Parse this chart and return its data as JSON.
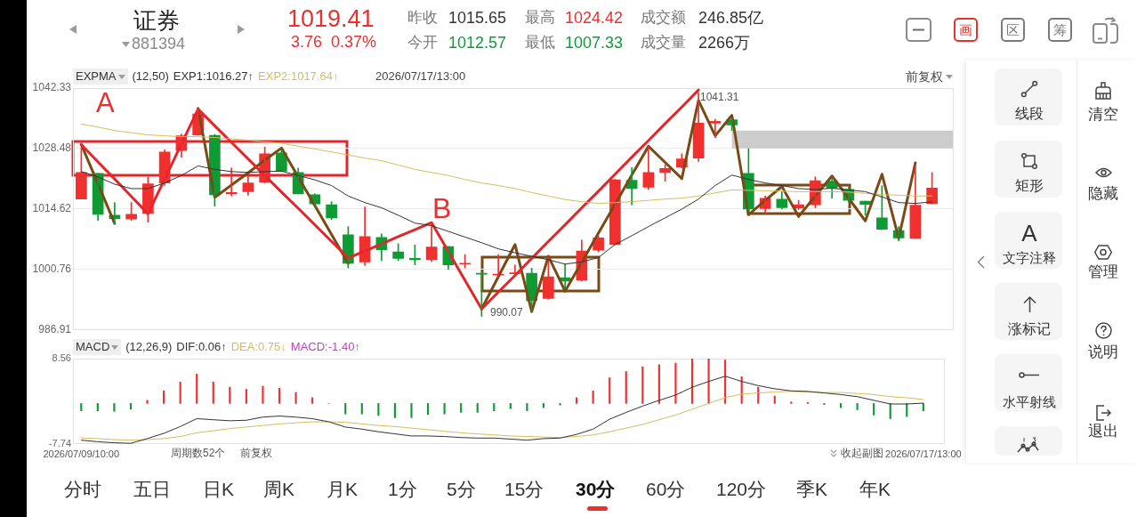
{
  "chart_data": [
    {
      "type": "other",
      "title": "证券",
      "subtitle": "881394",
      "annotations": [
        "1019.41",
        "3.76",
        "0.37%",
        "昨收",
        "1015.65",
        "今开",
        "1012.57",
        "最高",
        "1024.42",
        "最低",
        "1007.33",
        "成交额",
        "246.85亿",
        "成交量",
        "2266万",
        "画",
        "区",
        "筹"
      ]
    },
    {
      "type": "candlestick",
      "legend_title": "EXPMA",
      "legend": "top left",
      "grid": "y",
      "tick_labels": "y",
      "categories": [
        null,
        null,
        null,
        null,
        null,
        null,
        null,
        null,
        null,
        null,
        null,
        null,
        null,
        null,
        null,
        null,
        null,
        null,
        null,
        null,
        null,
        null,
        null,
        null,
        null,
        null,
        null,
        null,
        null,
        null,
        null,
        null,
        null,
        null,
        null,
        null,
        null,
        null,
        null,
        null,
        null,
        null,
        null,
        null,
        null,
        null,
        null,
        null,
        null,
        null,
        null,
        null
      ],
      "ohlc": [
        [
          1016.9,
          1028.7,
          1016.9,
          1023.0
        ],
        [
          1022.8,
          1022.8,
          1012.0,
          1013.4
        ],
        [
          1013.2,
          1016.1,
          1011.2,
          1012.4
        ],
        [
          1012.3,
          1016.1,
          1012.0,
          1013.4
        ],
        [
          1013.6,
          1022.0,
          1011.6,
          1020.4
        ],
        [
          1020.6,
          1028.2,
          1020.0,
          1027.7
        ],
        [
          1028.0,
          1031.8,
          1026.5,
          1031.4
        ],
        [
          1031.6,
          1037.8,
          1031.5,
          1036.4
        ],
        [
          1031.5,
          1031.7,
          1015.3,
          1017.9
        ],
        [
          1018.1,
          1024.0,
          1017.6,
          1018.4
        ],
        [
          1018.6,
          1022.3,
          1017.8,
          1020.6
        ],
        [
          1020.8,
          1028.8,
          1020.6,
          1027.3
        ],
        [
          1027.5,
          1028.2,
          1023.2,
          1023.3
        ],
        [
          1023.0,
          1024.0,
          1018.1,
          1018.1
        ],
        [
          1017.9,
          1018.1,
          1015.6,
          1015.8
        ],
        [
          1015.6,
          1016.3,
          1012.2,
          1012.6
        ],
        [
          1008.7,
          1010.6,
          1001.1,
          1002.2
        ],
        [
          1002.5,
          1015.1,
          1001.7,
          1008.3
        ],
        [
          1008.1,
          1008.9,
          1002.8,
          1005.3
        ],
        [
          1004.8,
          1006.7,
          1002.8,
          1003.3
        ],
        [
          1003.3,
          1006.4,
          1001.8,
          1003.0
        ],
        [
          1003.0,
          1011.4,
          1002.6,
          1005.9
        ],
        [
          1006.0,
          1006.0,
          1000.8,
          1001.8
        ],
        [
          1002.0,
          1004.2,
          1001.1,
          1002.2
        ],
        [
          999.9,
          1000.1,
          990.07,
          999.7
        ],
        [
          999.5,
          1004.2,
          999.1,
          999.7
        ],
        [
          999.8,
          1001.8,
          999.7,
          1000.0
        ],
        [
          999.9,
          1001.1,
          991.1,
          993.6
        ],
        [
          994.1,
          1003.5,
          993.9,
          999.1
        ],
        [
          998.9,
          1002.0,
          996.4,
          998.1
        ],
        [
          998.3,
          1007.5,
          998.1,
          1005.0
        ],
        [
          1005.2,
          1008.5,
          1004.8,
          1008.0
        ],
        [
          1006.5,
          1021.4,
          1006.4,
          1021.3
        ],
        [
          1021.2,
          1024.1,
          1015.6,
          1019.3
        ],
        [
          1019.6,
          1029.0,
          1019.1,
          1023.0
        ],
        [
          1023.0,
          1024.8,
          1021.0,
          1023.9
        ],
        [
          1024.2,
          1027.3,
          1024.0,
          1026.1
        ],
        [
          1026.3,
          1041.31,
          1025.5,
          1034.3
        ],
        [
          1034.3,
          1035.2,
          1031.0,
          1034.7
        ],
        [
          1035.1,
          1035.3,
          1032.6,
          1033.9
        ],
        [
          1022.8,
          1028.5,
          1014.2,
          1014.6
        ],
        [
          1014.7,
          1017.6,
          1013.6,
          1017.1
        ],
        [
          1016.9,
          1018.6,
          1014.6,
          1014.9
        ],
        [
          1014.8,
          1016.6,
          1014.5,
          1015.6
        ],
        [
          1015.6,
          1022.0,
          1014.9,
          1021.1
        ],
        [
          1021.0,
          1021.6,
          1017.1,
          1019.4
        ],
        [
          1019.1,
          1019.3,
          1016.3,
          1016.6
        ],
        [
          1016.4,
          1016.4,
          1013.2,
          1015.7
        ],
        [
          1012.57,
          1020.0,
          1009.9,
          1010.0
        ],
        [
          1009.7,
          1010.6,
          1007.33,
          1008.0
        ],
        [
          1007.9,
          1024.42,
          1007.9,
          1015.5
        ],
        [
          1015.9,
          1023.0,
          1015.8,
          1019.41
        ]
      ],
      "colors": [
        "#f0302f",
        "#0e9b34",
        "#0e9b34",
        "#f0302f",
        "#f0302f",
        "#f0302f",
        "#f0302f",
        "#f0302f",
        "#0e9b34",
        "#f0302f",
        "#f0302f",
        "#f0302f",
        "#0e9b34",
        "#0e9b34",
        "#0e9b34",
        "#0e9b34",
        "#0e9b34",
        "#f0302f",
        "#0e9b34",
        "#0e9b34",
        "#0e9b34",
        "#f0302f",
        "#0e9b34",
        "#f0302f",
        "#0e9b34",
        "#f0302f",
        "#f0302f",
        "#0e9b34",
        "#f0302f",
        "#0e9b34",
        "#f0302f",
        "#f0302f",
        "#f0302f",
        "#0e9b34",
        "#f0302f",
        "#f0302f",
        "#f0302f",
        "#f0302f",
        "#f0302f",
        "#0e9b34",
        "#0e9b34",
        "#f0302f",
        "#0e9b34",
        "#f0302f",
        "#f0302f",
        "#0e9b34",
        "#0e9b34",
        "#0e9b34",
        "#0e9b34",
        "#0e9b34",
        "#f0302f",
        "#f0302f"
      ],
      "series": [
        {
          "name": "EXP1:1016.27↑",
          "type": "line",
          "color": "#333333",
          "values": [
            1023.2,
            1022.0,
            1020.3,
            1019.3,
            1019.3,
            1020.6,
            1022.3,
            1024.5,
            1023.7,
            1023.2,
            1023.0,
            1023.2,
            1023.3,
            1022.3,
            1021.3,
            1020.0,
            1017.6,
            1016.1,
            1014.9,
            1013.2,
            1011.4,
            1010.8,
            1009.5,
            1008.2,
            1006.9,
            1005.5,
            1004.6,
            1003.8,
            1003.0,
            1002.0,
            1002.5,
            1003.5,
            1006.5,
            1008.5,
            1010.6,
            1012.6,
            1014.6,
            1016.9,
            1020.0,
            1022.4,
            1021.4,
            1020.6,
            1020.0,
            1019.3,
            1019.1,
            1019.4,
            1019.0,
            1018.6,
            1017.4,
            1016.1,
            1015.9,
            1016.27
          ]
        },
        {
          "name": "EXP2:1017.64↑",
          "type": "line",
          "color": "#d6bd5c",
          "values": [
            1034.1,
            1033.4,
            1032.6,
            1032.1,
            1031.6,
            1031.4,
            1031.2,
            1031.2,
            1031.0,
            1030.7,
            1030.4,
            1030.0,
            1029.7,
            1029.0,
            1028.4,
            1027.7,
            1027.0,
            1026.3,
            1025.7,
            1024.7,
            1023.7,
            1023.0,
            1022.3,
            1021.4,
            1020.6,
            1020.0,
            1019.3,
            1018.4,
            1017.6,
            1016.8,
            1016.3,
            1015.9,
            1016.1,
            1016.3,
            1016.6,
            1016.9,
            1017.1,
            1017.6,
            1018.3,
            1019.0,
            1018.9,
            1018.8,
            1018.7,
            1018.6,
            1018.6,
            1018.6,
            1018.5,
            1018.2,
            1017.9,
            1017.8,
            1017.6,
            1017.64
          ]
        },
        {
          "type": "line",
          "color": "#e3262b",
          "values": [
            1029.4,
            1025.4,
            1021.5,
            1017.5,
            1013.5,
            1021.5,
            1029.5,
            1037.5,
            1033.7,
            1029.9,
            1026.1,
            1022.3,
            1018.5,
            1014.8,
            1011.0,
            1007.2,
            1003.4,
            1005.0,
            1006.6,
            1008.3,
            1009.9,
            1011.5,
            1004.9,
            998.3,
            991.7,
            995.6,
            999.4,
            1003.3,
            1007.2,
            1011.0,
            1014.9,
            1018.7,
            1022.6,
            1026.5,
            1030.3,
            1034.2,
            1038.0,
            1041.9,
            null,
            null,
            null,
            null,
            null,
            null,
            null,
            null,
            null,
            null,
            null,
            null,
            null,
            null
          ]
        },
        {
          "type": "line",
          "color": "#7a4a16",
          "values": [
            1029.4,
            1020.4,
            1011.3,
            null,
            null,
            null,
            null,
            1037.7,
            1017.3,
            1020.1,
            1022.9,
            1025.8,
            1028.6,
            1022.0,
            1015.4,
            1008.8,
            1002.2,
            null,
            null,
            null,
            null,
            null,
            null,
            null,
            991.7,
            999.1,
            1006.5,
            991.1,
            1003.8,
            995.8,
            1002.4,
            1009.1,
            1015.7,
            1022.4,
            1029.0,
            1025.3,
            1021.6,
            1039.5,
            1031.4,
            1036.1,
            1013.3,
            1016.6,
            1019.8,
            1012.9,
            1017.6,
            1022.2,
            1017.1,
            1011.9,
            1022.6,
            1007.9,
            1025.2,
            null
          ]
        }
      ],
      "ylim": [
        986.91,
        1042.33
      ],
      "yticks": [
        986.91,
        1000.76,
        1014.62,
        1028.48,
        1042.33
      ],
      "bands": [
        {
          "axis": "y",
          "from": 1028.5,
          "to": 1032.6,
          "color": "#cccccc"
        }
      ],
      "annotations": [
        "(12,50)",
        "2026/07/17/13:00",
        "前复权",
        "1041.31",
        "990.07",
        "A",
        "B"
      ]
    },
    {
      "type": "bar",
      "legend_title": "MACD",
      "legend": "top left",
      "categories": [
        "2026/07/09/10:00",
        null,
        null,
        null,
        null,
        null,
        null,
        null,
        null,
        null,
        null,
        null,
        null,
        null,
        null,
        null,
        null,
        null,
        null,
        null,
        null,
        null,
        null,
        null,
        null,
        null,
        null,
        null,
        null,
        null,
        null,
        null,
        null,
        null,
        null,
        null,
        null,
        null,
        null,
        null,
        null,
        null,
        null,
        null,
        null,
        null,
        null,
        null,
        null,
        null,
        null,
        "2026/07/17/13:00"
      ],
      "series": [
        {
          "name": "DIF:0.06↑",
          "type": "line",
          "color": "#333333",
          "values": [
            -7.0,
            -7.3,
            -7.5,
            -7.6,
            -6.7,
            -5.7,
            -4.4,
            -2.9,
            -3.1,
            -3.3,
            -3.2,
            -2.6,
            -2.4,
            -2.6,
            -2.9,
            -3.5,
            -4.5,
            -4.9,
            -5.4,
            -5.8,
            -6.2,
            -6.2,
            -6.3,
            -6.5,
            -6.6,
            -6.6,
            -6.8,
            -7.0,
            -6.7,
            -6.6,
            -5.9,
            -4.9,
            -3.0,
            -1.7,
            -0.5,
            0.6,
            1.6,
            3.1,
            4.2,
            5.2,
            4.2,
            3.4,
            2.8,
            2.4,
            2.3,
            2.0,
            1.7,
            1.3,
            0.6,
            -0.1,
            -0.1,
            0.06
          ]
        },
        {
          "name": "DEA:0.75↓",
          "type": "line",
          "color": "#d6bd5c",
          "values": [
            -6.6,
            -6.7,
            -6.9,
            -7.0,
            -6.9,
            -6.7,
            -6.3,
            -5.6,
            -5.2,
            -4.8,
            -4.5,
            -4.2,
            -3.9,
            -3.7,
            -3.5,
            -3.5,
            -3.6,
            -3.9,
            -4.2,
            -4.4,
            -4.7,
            -5.0,
            -5.3,
            -5.6,
            -5.8,
            -6.0,
            -6.2,
            -6.3,
            -6.4,
            -6.5,
            -6.3,
            -6.0,
            -5.4,
            -4.7,
            -4.0,
            -3.1,
            -2.2,
            -1.1,
            0.0,
            1.1,
            1.8,
            2.0,
            2.2,
            2.3,
            2.2,
            2.1,
            2.1,
            1.9,
            1.7,
            1.3,
            1.1,
            0.75
          ]
        },
        {
          "type": "bar",
          "colors": [
            "#0e9b34",
            "#0e9b34",
            "#0e9b34",
            "#0e9b34",
            "#f0302f",
            "#f0302f",
            "#f0302f",
            "#f0302f",
            "#f0302f",
            "#f0302f",
            "#f0302f",
            "#f0302f",
            "#f0302f",
            "#f0302f",
            "#f0302f",
            "#f0302f",
            "#0e9b34",
            "#0e9b34",
            "#0e9b34",
            "#0e9b34",
            "#0e9b34",
            "#0e9b34",
            "#0e9b34",
            "#0e9b34",
            "#0e9b34",
            "#0e9b34",
            "#0e9b34",
            "#0e9b34",
            "#0e9b34",
            "#0e9b34",
            "#f0302f",
            "#f0302f",
            "#f0302f",
            "#f0302f",
            "#f0302f",
            "#f0302f",
            "#f0302f",
            "#f0302f",
            "#f0302f",
            "#f0302f",
            "#f0302f",
            "#f0302f",
            "#f0302f",
            "#f0302f",
            "#f0302f",
            "#0e9b34",
            "#0e9b34",
            "#0e9b34",
            "#0e9b34",
            "#0e9b34",
            "#0e9b34",
            "#0e9b34"
          ],
          "values": [
            -1.4,
            -1.4,
            -1.5,
            -1.1,
            0.6,
            2.4,
            4.1,
            5.6,
            4.1,
            3.1,
            2.7,
            3.3,
            2.9,
            2.1,
            1.1,
            0,
            -2.0,
            -2.0,
            -2.3,
            -2.7,
            -2.7,
            -2.1,
            -2.0,
            -1.7,
            -1.7,
            -1.4,
            -1.0,
            -1.4,
            -0.8,
            -0.3,
            1.1,
            2.4,
            4.9,
            6.1,
            7.0,
            7.4,
            7.7,
            8.5,
            8.5,
            8.3,
            5.1,
            3.1,
            1.4,
            0.3,
            0.2,
            -0.2,
            -0.8,
            -1.2,
            -2.2,
            -2.9,
            -2.5,
            -1.4
          ]
        }
      ],
      "ylim": [
        -7.74,
        8.56
      ],
      "yticks": [
        -7.74,
        8.56
      ],
      "annotations": [
        "(12,26,9)",
        "MACD:-1.40↑",
        "周期数52个",
        "前复权",
        "收起副图"
      ]
    },
    {
      "type": "other",
      "annotations": [
        "线段",
        "矩形",
        "A",
        "文字注释",
        "涨标记",
        "水平射线",
        "清空",
        "隐藏",
        "管理",
        "说明",
        "退出"
      ]
    },
    {
      "type": "other",
      "annotations": [
        "分时",
        "五日",
        "日K",
        "周K",
        "月K",
        "1分",
        "5分",
        "15分",
        "30分",
        "60分",
        "120分",
        "季K",
        "年K"
      ]
    }
  ]
}
